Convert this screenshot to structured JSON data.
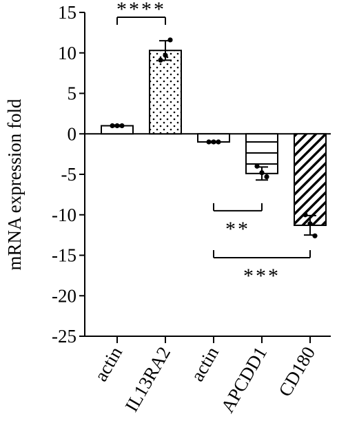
{
  "chart_data": {
    "type": "bar",
    "categories": [
      "actin",
      "IL13RA2",
      "actin",
      "APCDD1",
      "CD180"
    ],
    "values": [
      1.0,
      10.3,
      -1.0,
      -4.9,
      -11.3
    ],
    "errors": [
      0.1,
      1.2,
      0.1,
      0.8,
      1.2
    ],
    "points": [
      [
        1.0,
        1.0,
        1.0
      ],
      [
        9.1,
        9.7,
        11.6
      ],
      [
        -1.0,
        -1.0,
        -1.0
      ],
      [
        -4.0,
        -4.8,
        -5.3
      ],
      [
        -10.0,
        -11.1,
        -12.6
      ]
    ],
    "fills": [
      "white",
      "dots",
      "white",
      "horizontal-lines",
      "diagonal-hatch"
    ],
    "ylabel": "mRNA expression fold",
    "ylim": [
      -25,
      15
    ],
    "yticks": [
      15,
      10,
      5,
      0,
      -5,
      -10,
      -15,
      -20,
      -25
    ],
    "grid": false,
    "significance": [
      {
        "from": 0,
        "to": 1,
        "label": "****",
        "y": 14.4,
        "position": "above"
      },
      {
        "from": 2,
        "to": 3,
        "label": "**",
        "y": -9.5,
        "position": "below"
      },
      {
        "from": 2,
        "to": 4,
        "label": "***",
        "y": -15.3,
        "position": "below"
      }
    ]
  }
}
